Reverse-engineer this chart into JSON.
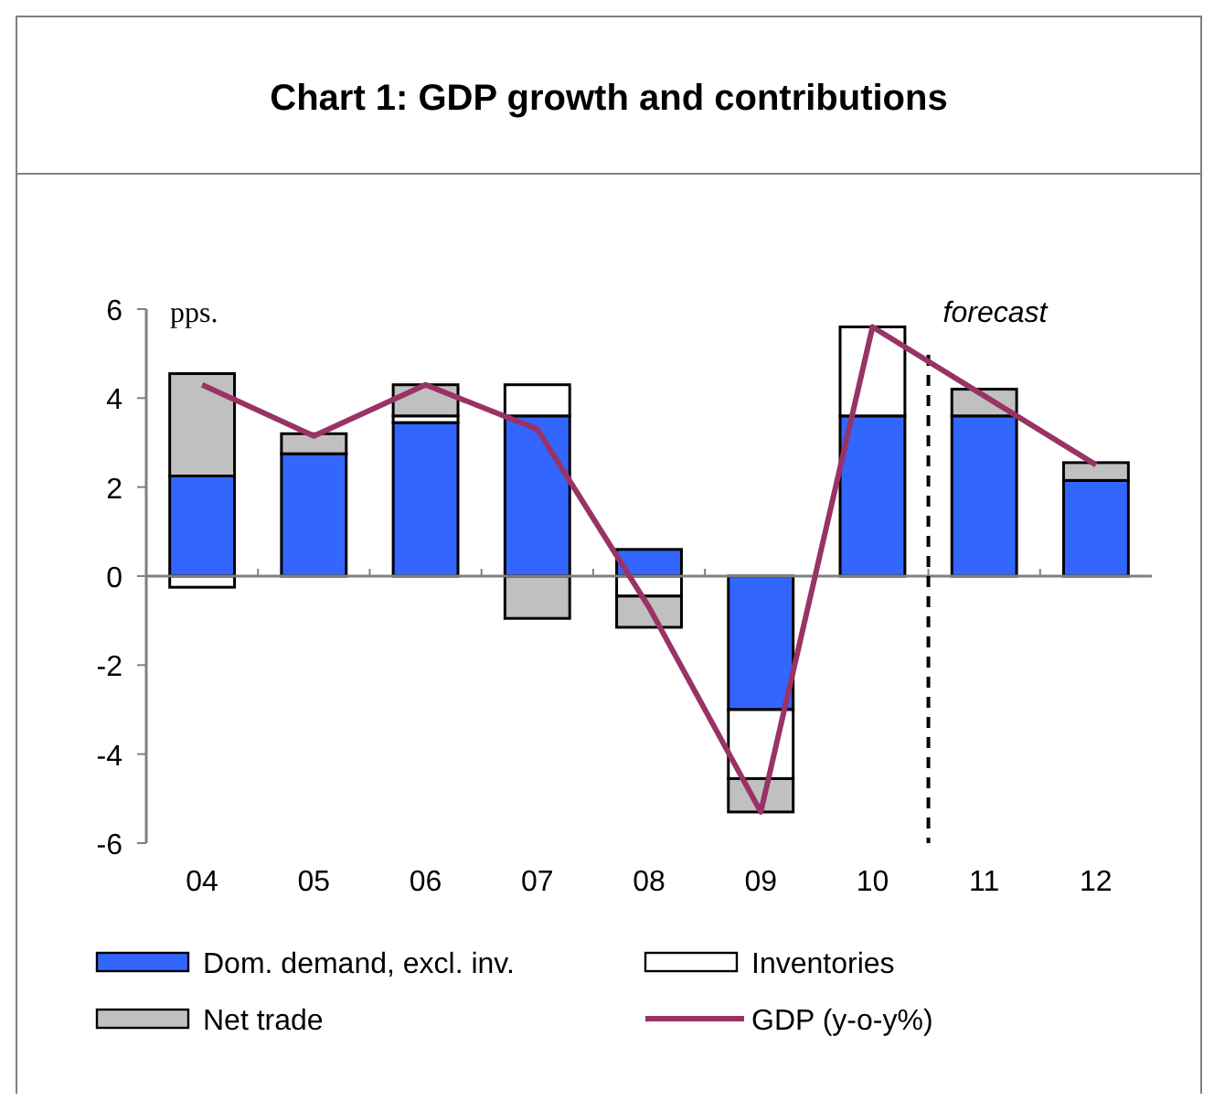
{
  "chart_data": {
    "type": "bar",
    "title": "Chart 1: GDP growth and contributions",
    "ylabel": "pps.",
    "categories": [
      "04",
      "05",
      "06",
      "07",
      "08",
      "09",
      "10",
      "11",
      "12"
    ],
    "stacked": true,
    "ylim": [
      -6,
      6
    ],
    "yticks": [
      -6,
      -4,
      -2,
      0,
      2,
      4,
      6
    ],
    "grid": false,
    "legend": "bottom",
    "series": [
      {
        "name": "Dom. demand, excl. inv.",
        "color": "#3366ff",
        "values": [
          2.25,
          2.75,
          3.45,
          3.6,
          0.6,
          -3.0,
          3.6,
          3.6,
          2.15
        ]
      },
      {
        "name": "Inventories",
        "color": "#ffffff",
        "values": [
          -0.25,
          0,
          0.15,
          0.7,
          -0.45,
          -1.55,
          2.0,
          0,
          0
        ]
      },
      {
        "name": "Net trade",
        "color": "#c0c0c0",
        "values": [
          2.3,
          0.45,
          0.7,
          -0.95,
          -0.7,
          -0.75,
          null,
          0.6,
          0.4
        ]
      },
      {
        "name": "GDP (y-o-y%)",
        "type": "line",
        "color": "#993366",
        "values": [
          4.3,
          3.15,
          4.3,
          3.3,
          -0.7,
          -5.3,
          5.6,
          4.05,
          2.5
        ]
      }
    ],
    "ref_lines": [
      {
        "axis": "x",
        "value": "11",
        "label": "forecast",
        "line_style": "dashed",
        "color": "#000000"
      }
    ]
  }
}
